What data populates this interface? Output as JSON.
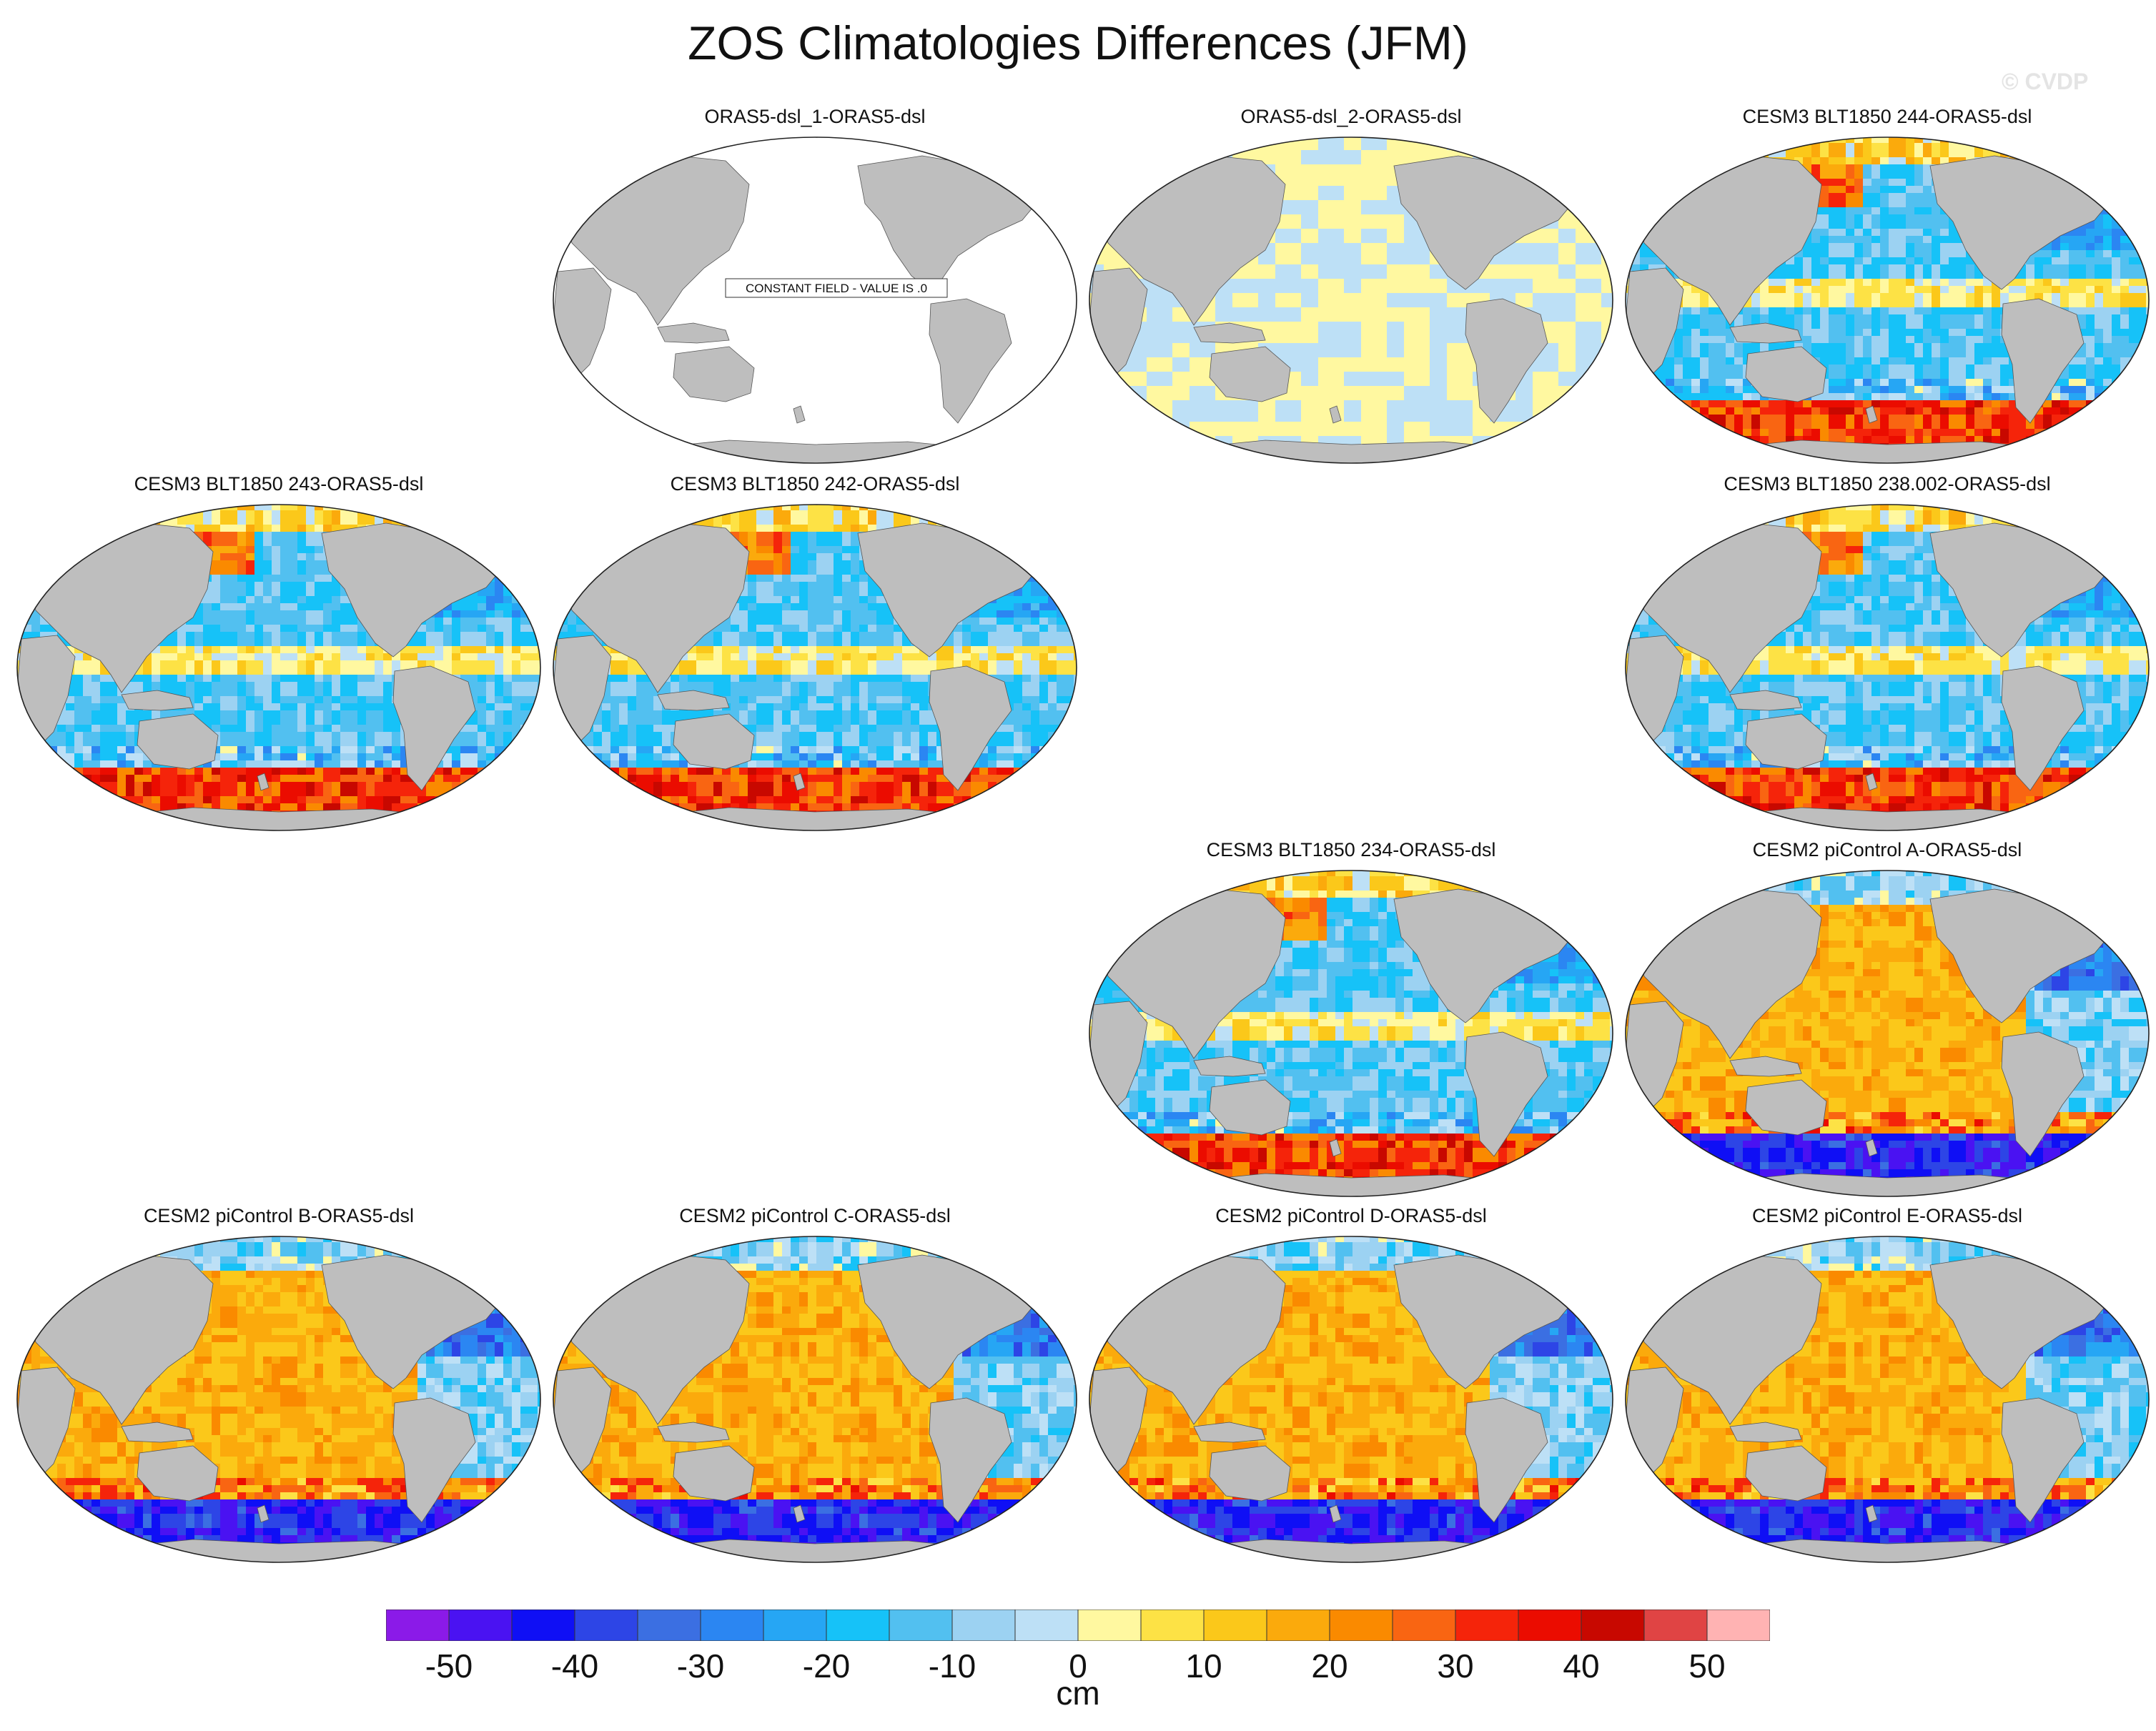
{
  "title": "ZOS Climatologies Differences (JFM)",
  "watermark": "© CVDP",
  "panels": [
    {
      "title": "ORAS5-dsl_1-ORAS5-dsl",
      "pattern": "constant",
      "note": "CONSTANT FIELD - VALUE IS .0"
    },
    {
      "title": "ORAS5-dsl_2-ORAS5-dsl",
      "pattern": "small"
    },
    {
      "title": "CESM3 BLT1850 244-ORAS5-dsl",
      "pattern": "cesm3"
    },
    {
      "title": "CESM3 BLT1850 243-ORAS5-dsl",
      "pattern": "cesm3"
    },
    {
      "title": "CESM3 BLT1850 242-ORAS5-dsl",
      "pattern": "cesm3"
    },
    {
      "title": "CESM3 BLT1850 238.002-ORAS5-dsl",
      "pattern": "cesm3"
    },
    {
      "title": "CESM3 BLT1850 234-ORAS5-dsl",
      "pattern": "cesm3"
    },
    {
      "title": "CESM2 piControl A-ORAS5-dsl",
      "pattern": "cesm2"
    },
    {
      "title": "CESM2 piControl B-ORAS5-dsl",
      "pattern": "cesm2"
    },
    {
      "title": "CESM2 piControl C-ORAS5-dsl",
      "pattern": "cesm2"
    },
    {
      "title": "CESM2 piControl D-ORAS5-dsl",
      "pattern": "cesm2"
    },
    {
      "title": "CESM2 piControl E-ORAS5-dsl",
      "pattern": "cesm2"
    }
  ],
  "colorbar": {
    "units": "cm",
    "tick_labels": [
      "-50",
      "-40",
      "-30",
      "-20",
      "-10",
      "0",
      "10",
      "20",
      "30",
      "40",
      "50"
    ],
    "colors": [
      "#8b1ae8",
      "#4a12f2",
      "#0f0ff5",
      "#2d45e6",
      "#3b6fe2",
      "#2b86f2",
      "#26a6f4",
      "#16c2f8",
      "#52c0f0",
      "#9cd2f2",
      "#bde0f6",
      "#fff8a0",
      "#fde245",
      "#fbc81a",
      "#fbaa0c",
      "#fa8a00",
      "#f96512",
      "#f5240a",
      "#eb0c00",
      "#c80800",
      "#e04444",
      "#ffb3b3"
    ]
  },
  "colors": {
    "land": "#bebebe",
    "ocean_blank": "#ffffff"
  }
}
